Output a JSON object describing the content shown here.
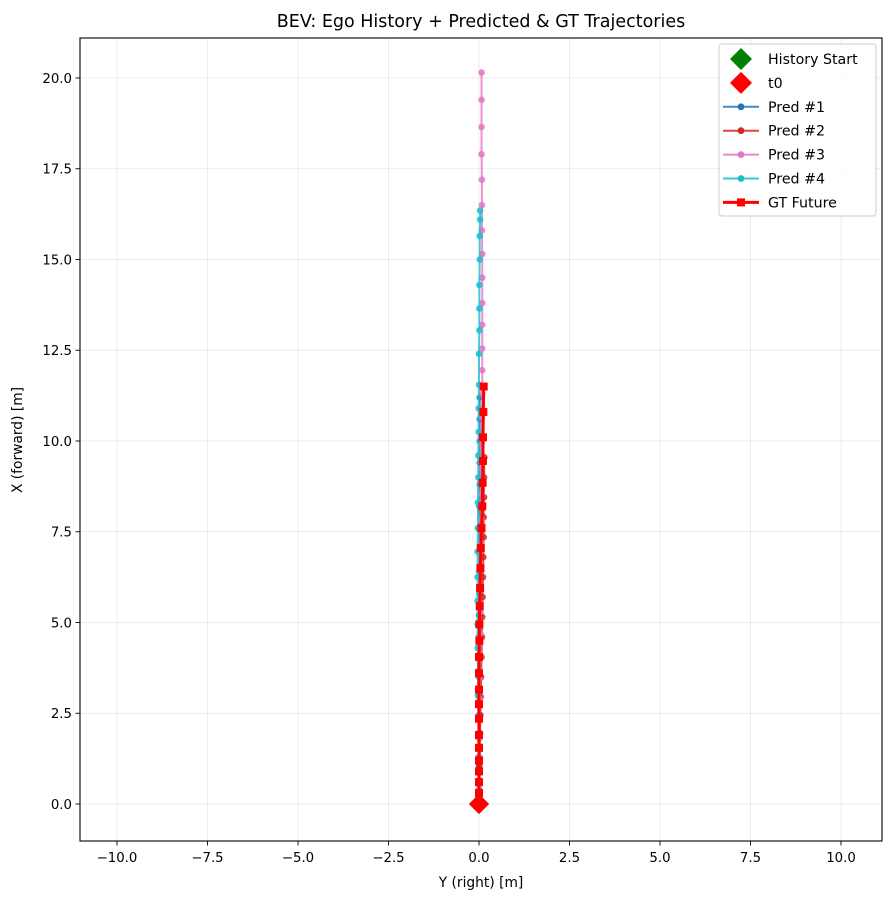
{
  "chart_data": {
    "type": "line",
    "title": "BEV: Ego History + Predicted & GT Trajectories",
    "xlabel": "Y (right) [m]",
    "ylabel": "X (forward) [m]",
    "xlim": [
      -11.0,
      11.1
    ],
    "ylim": [
      -1.05,
      21.1
    ],
    "grid": true,
    "aspect": "equal",
    "legend_position": "upper right",
    "x_ticks": [
      -10.0,
      -7.5,
      -5.0,
      -2.5,
      0.0,
      2.5,
      5.0,
      7.5,
      10.0
    ],
    "x_tick_labels": [
      "−10.0",
      "−7.5",
      "−5.0",
      "−2.5",
      "0.0",
      "2.5",
      "5.0",
      "7.5",
      "10.0"
    ],
    "y_ticks": [
      0.0,
      2.5,
      5.0,
      7.5,
      10.0,
      12.5,
      15.0,
      17.5,
      20.0
    ],
    "y_tick_labels": [
      "0.0",
      "2.5",
      "5.0",
      "7.5",
      "10.0",
      "12.5",
      "15.0",
      "17.5",
      "20.0"
    ],
    "markers": [
      {
        "name": "History Start",
        "y_right": 0.0,
        "x_forward": 0.0,
        "marker": "diamond",
        "color": "#008000"
      },
      {
        "name": "t0",
        "y_right": 0.0,
        "x_forward": 0.0,
        "marker": "diamond",
        "color": "#ff0000"
      }
    ],
    "series": [
      {
        "name": "Pred #1",
        "color": "#1f77b4",
        "marker": "circle",
        "y_right": [
          0.0,
          0.0,
          0.0,
          0.0,
          0.0,
          0.0,
          0.0,
          0.0,
          0.0,
          0.0,
          0.0,
          0.0,
          0.01,
          0.01,
          0.01,
          0.01,
          0.01,
          0.02,
          0.02,
          0.02,
          0.02,
          0.02
        ],
        "x_forward": [
          0.0,
          0.3,
          0.65,
          1.05,
          1.5,
          1.95,
          2.45,
          2.95,
          3.5,
          4.05,
          4.6,
          5.2,
          5.8,
          6.4,
          7.0,
          7.6,
          8.2,
          8.8,
          9.4,
          10.0,
          10.6,
          11.2
        ]
      },
      {
        "name": "Pred #2",
        "color": "#d62728",
        "marker": "circle",
        "y_right": [
          0.0,
          0.0,
          0.01,
          0.01,
          0.02,
          0.03,
          0.04,
          0.05,
          0.06,
          0.07,
          0.08,
          0.09,
          0.1,
          0.11,
          0.12,
          0.13,
          0.13,
          0.14,
          0.14,
          0.15
        ],
        "x_forward": [
          0.0,
          0.3,
          0.65,
          1.05,
          1.5,
          1.95,
          2.45,
          2.95,
          3.5,
          4.05,
          4.6,
          5.15,
          5.7,
          6.25,
          6.8,
          7.35,
          7.9,
          8.45,
          9.0,
          9.55
        ]
      },
      {
        "name": "Pred #3",
        "color": "#e377c2",
        "marker": "circle",
        "y_right": [
          0.0,
          0.0,
          0.0,
          0.01,
          0.01,
          0.02,
          0.02,
          0.03,
          0.03,
          0.04,
          0.04,
          0.05,
          0.05,
          0.06,
          0.06,
          0.07,
          0.07,
          0.08,
          0.08,
          0.09,
          0.09,
          0.09,
          0.09,
          0.09,
          0.09,
          0.09,
          0.08,
          0.08,
          0.08,
          0.07,
          0.07,
          0.07,
          0.07
        ],
        "x_forward": [
          0.0,
          0.4,
          0.85,
          1.3,
          1.8,
          2.35,
          2.9,
          3.5,
          4.1,
          4.7,
          5.3,
          5.9,
          6.55,
          7.2,
          7.85,
          8.55,
          9.25,
          9.95,
          10.65,
          11.3,
          11.95,
          12.55,
          13.2,
          13.8,
          14.5,
          15.15,
          15.8,
          16.5,
          17.2,
          17.9,
          18.65,
          19.4,
          20.15
        ]
      },
      {
        "name": "Pred #4",
        "color": "#17becf",
        "marker": "circle",
        "y_right": [
          0.0,
          0.0,
          -0.01,
          -0.01,
          -0.02,
          -0.02,
          -0.03,
          -0.03,
          -0.04,
          -0.04,
          -0.04,
          -0.04,
          -0.04,
          -0.03,
          -0.03,
          -0.02,
          -0.02,
          -0.01,
          -0.01,
          0.0,
          0.0,
          0.01,
          0.01,
          0.01,
          0.02,
          0.02,
          0.03,
          0.03
        ],
        "x_forward": [
          0.0,
          0.4,
          0.85,
          1.3,
          1.85,
          2.4,
          3.0,
          3.65,
          4.3,
          4.95,
          5.6,
          6.25,
          6.95,
          7.6,
          8.3,
          9.0,
          9.6,
          10.25,
          10.9,
          11.55,
          12.4,
          13.05,
          13.65,
          14.3,
          15.0,
          15.65,
          16.1,
          16.35
        ]
      },
      {
        "name": "GT Future",
        "color": "#ff0000",
        "marker": "square",
        "linewidth": "thick",
        "y_right": [
          0.0,
          0.0,
          0.0,
          0.0,
          0.0,
          0.0,
          0.0,
          0.0,
          0.0,
          0.0,
          0.0,
          0.0,
          0.01,
          0.01,
          0.02,
          0.03,
          0.04,
          0.05,
          0.07,
          0.09,
          0.1,
          0.11,
          0.11,
          0.12,
          0.13
        ],
        "x_forward": [
          0.0,
          0.3,
          0.6,
          0.9,
          1.2,
          1.55,
          1.9,
          2.35,
          2.75,
          3.15,
          3.6,
          4.05,
          4.5,
          4.95,
          5.45,
          5.95,
          6.5,
          7.05,
          7.6,
          8.2,
          8.85,
          9.45,
          10.1,
          10.8,
          11.5
        ]
      }
    ]
  },
  "legend": {
    "items": [
      {
        "label": "History Start"
      },
      {
        "label": "t0"
      },
      {
        "label": "Pred #1"
      },
      {
        "label": "Pred #2"
      },
      {
        "label": "Pred #3"
      },
      {
        "label": "Pred #4"
      },
      {
        "label": "GT Future"
      }
    ]
  }
}
